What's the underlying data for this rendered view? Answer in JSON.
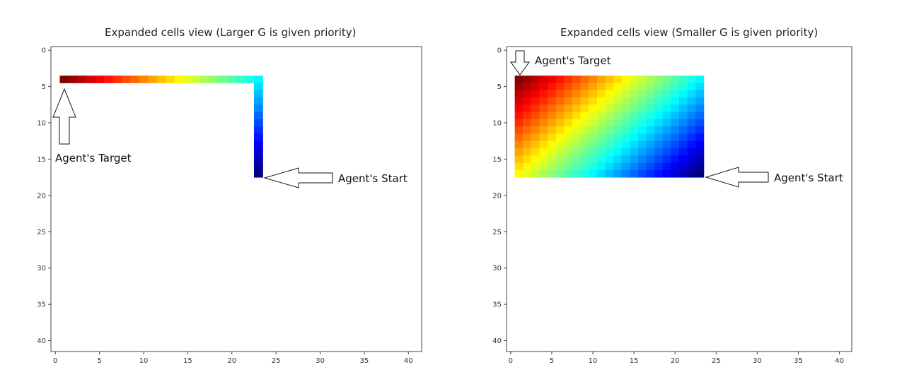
{
  "chart_data": [
    {
      "type": "heatmap",
      "title": "Expanded cells view (Larger G is given priority)",
      "grid_size": 42,
      "xlim": [
        -0.5,
        41.5
      ],
      "ylim": [
        41.5,
        -0.5
      ],
      "xticks": [
        0,
        5,
        10,
        15,
        20,
        25,
        30,
        35,
        40
      ],
      "yticks": [
        0,
        5,
        10,
        15,
        20,
        25,
        30,
        35,
        40
      ],
      "colormap": "jet",
      "expanded_cells": [
        {
          "row": 4,
          "col_start": 1,
          "col_end": 23
        },
        {
          "col": 23,
          "row_start": 5,
          "row_end": 17
        }
      ],
      "annotations": [
        {
          "text": "Agent's Target",
          "cell": [
            4,
            1
          ]
        },
        {
          "text": "Agent's Start",
          "cell": [
            17,
            23
          ]
        }
      ]
    },
    {
      "type": "heatmap",
      "title": "Expanded cells view (Smaller G is given priority)",
      "grid_size": 42,
      "xlim": [
        -0.5,
        41.5
      ],
      "ylim": [
        41.5,
        -0.5
      ],
      "xticks": [
        0,
        5,
        10,
        15,
        20,
        25,
        30,
        35,
        40
      ],
      "yticks": [
        0,
        5,
        10,
        15,
        20,
        25,
        30,
        35,
        40
      ],
      "colormap": "jet",
      "expanded_cells": [
        {
          "row_start": 4,
          "row_end": 17,
          "col_start": 1,
          "col_end": 23
        }
      ],
      "annotations": [
        {
          "text": "Agent's Target",
          "cell": [
            4,
            1
          ]
        },
        {
          "text": "Agent's Start",
          "cell": [
            17,
            23
          ]
        }
      ]
    }
  ]
}
